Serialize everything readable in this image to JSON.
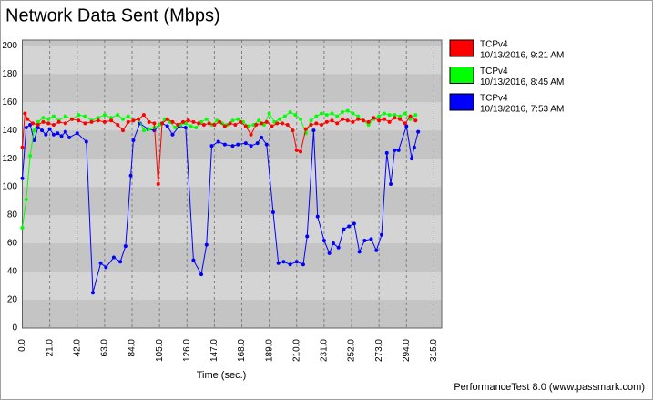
{
  "chart_data": {
    "type": "line",
    "title": "Network Data Sent (Mbps)",
    "x_label": "Time (sec.)",
    "footer": "PerformanceTest 8.0 (www.passmark.com)",
    "xlim": [
      0,
      321
    ],
    "ylim": [
      0,
      204
    ],
    "xticks": [
      {
        "value": 0,
        "label": "0.0"
      },
      {
        "value": 21,
        "label": "21.0"
      },
      {
        "value": 42,
        "label": "42.0"
      },
      {
        "value": 63,
        "label": "63.0"
      },
      {
        "value": 84,
        "label": "84.0"
      },
      {
        "value": 105,
        "label": "105.0"
      },
      {
        "value": 126,
        "label": "126.0"
      },
      {
        "value": 147,
        "label": "147.0"
      },
      {
        "value": 168,
        "label": "168.0"
      },
      {
        "value": 189,
        "label": "189.0"
      },
      {
        "value": 210,
        "label": "210.0"
      },
      {
        "value": 231,
        "label": "231.0"
      },
      {
        "value": 252,
        "label": "252.0"
      },
      {
        "value": 273,
        "label": "273.0"
      },
      {
        "value": 294,
        "label": "294.0"
      },
      {
        "value": 315,
        "label": "315.0"
      }
    ],
    "yticks": [
      0,
      20,
      40,
      60,
      80,
      100,
      120,
      140,
      160,
      180,
      200
    ],
    "grid": true,
    "legend_position": "right",
    "series": [
      {
        "name": "TCPv4",
        "subtitle": "10/13/2016, 9:21 AM",
        "color": "#ff0000",
        "x": [
          0,
          2,
          4,
          8,
          12,
          16,
          20,
          24,
          28,
          33,
          38,
          43,
          48,
          53,
          58,
          63,
          68,
          73,
          77,
          81,
          85,
          89,
          93,
          97,
          101,
          104,
          107,
          111,
          115,
          119,
          123,
          127,
          131,
          135,
          139,
          143,
          147,
          151,
          155,
          159,
          163,
          167,
          171,
          175,
          179,
          183,
          187,
          191,
          195,
          199,
          203,
          207,
          210,
          213,
          217,
          221,
          225,
          229,
          233,
          237,
          241,
          245,
          249,
          253,
          257,
          261,
          265,
          269,
          273,
          277,
          281,
          285,
          289,
          293,
          297,
          301
        ],
        "values": [
          128,
          152,
          148,
          145,
          144,
          146,
          145,
          144,
          146,
          145,
          148,
          147,
          145,
          146,
          147,
          146,
          147,
          144,
          140,
          146,
          147,
          148,
          151,
          146,
          145,
          102,
          145,
          148,
          146,
          144,
          146,
          147,
          146,
          145,
          144,
          145,
          144,
          146,
          143,
          145,
          144,
          146,
          143,
          137,
          144,
          145,
          146,
          143,
          145,
          145,
          144,
          140,
          126,
          125,
          141,
          144,
          145,
          144,
          146,
          147,
          145,
          148,
          147,
          146,
          148,
          147,
          146,
          149,
          147,
          148,
          146,
          149,
          148,
          145,
          150,
          147
        ]
      },
      {
        "name": "TCPv4",
        "subtitle": "10/13/2016, 8:45 AM",
        "color": "#00ff00",
        "x": [
          0,
          3,
          6,
          9,
          12,
          16,
          20,
          24,
          28,
          33,
          38,
          43,
          48,
          53,
          58,
          63,
          68,
          73,
          77,
          81,
          85,
          89,
          93,
          97,
          101,
          105,
          109,
          113,
          117,
          121,
          125,
          129,
          133,
          137,
          141,
          145,
          149,
          153,
          157,
          161,
          165,
          169,
          173,
          177,
          181,
          185,
          189,
          193,
          197,
          201,
          205,
          209,
          213,
          217,
          221,
          225,
          229,
          233,
          237,
          241,
          245,
          249,
          253,
          257,
          261,
          265,
          269,
          273,
          277,
          281,
          285,
          289,
          293,
          297,
          301
        ],
        "values": [
          71,
          91,
          122,
          140,
          146,
          149,
          148,
          150,
          147,
          150,
          148,
          151,
          150,
          147,
          149,
          151,
          149,
          151,
          148,
          150,
          147,
          148,
          140,
          141,
          142,
          144,
          148,
          146,
          142,
          144,
          145,
          143,
          142,
          146,
          148,
          144,
          147,
          145,
          144,
          147,
          148,
          146,
          143,
          144,
          147,
          144,
          152,
          146,
          148,
          150,
          153,
          151,
          148,
          138,
          147,
          150,
          152,
          151,
          152,
          150,
          153,
          154,
          152,
          150,
          147,
          144,
          148,
          150,
          152,
          151,
          151,
          150,
          152,
          148,
          151
        ]
      },
      {
        "name": "TCPv4",
        "subtitle": "10/13/2016, 7:53 AM",
        "color": "#0000ff",
        "x": [
          0,
          3,
          6,
          9,
          12,
          15,
          18,
          21,
          24,
          27,
          30,
          33,
          36,
          42,
          49,
          54,
          60,
          64,
          70,
          75,
          79,
          83,
          85,
          90,
          96,
          101,
          107,
          111,
          115,
          120,
          125,
          131,
          137,
          141,
          145,
          150,
          155,
          161,
          165,
          171,
          175,
          180,
          183,
          187,
          192,
          196,
          200,
          205,
          210,
          215,
          218,
          223,
          226,
          231,
          235,
          238,
          242,
          246,
          250,
          254,
          258,
          262,
          267,
          271,
          275,
          279,
          282,
          285,
          288,
          294,
          298,
          300,
          303
        ],
        "values": [
          106,
          142,
          144,
          133,
          142,
          140,
          137,
          141,
          137,
          138,
          136,
          139,
          135,
          138,
          132,
          25,
          46,
          43,
          50,
          47,
          58,
          108,
          133,
          145,
          141,
          140,
          145,
          143,
          137,
          143,
          142,
          48,
          38,
          59,
          129,
          132,
          130,
          129,
          130,
          131,
          129,
          131,
          135,
          130,
          82,
          46,
          47,
          45,
          47,
          45,
          65,
          140,
          79,
          62,
          53,
          60,
          57,
          70,
          72,
          74,
          54,
          62,
          63,
          55,
          66,
          124,
          102,
          126,
          126,
          143,
          120,
          128,
          139
        ]
      }
    ]
  }
}
